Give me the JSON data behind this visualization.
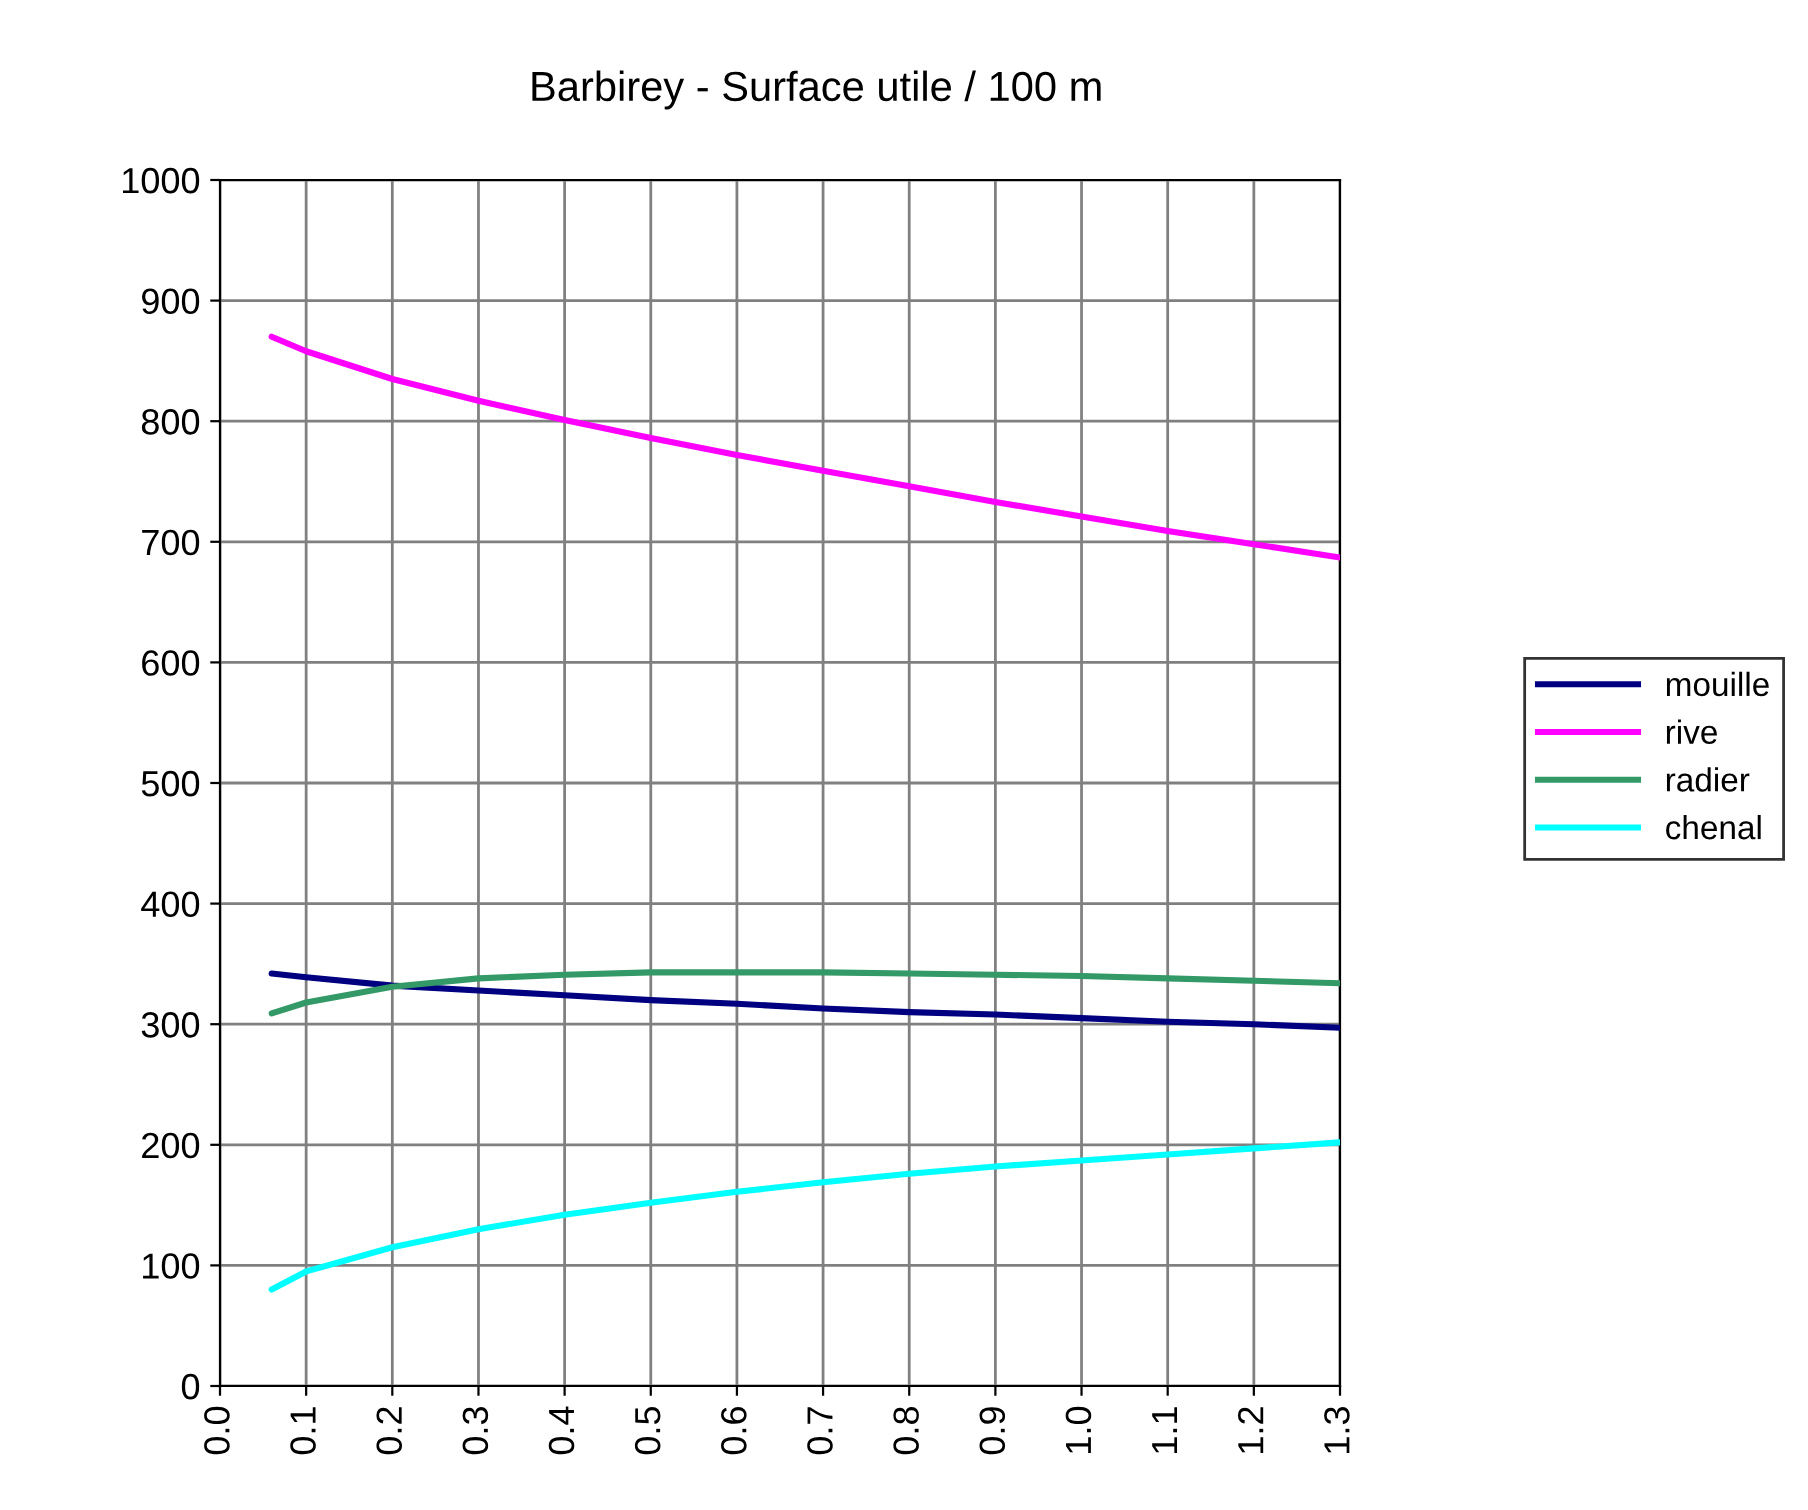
{
  "chart_data": {
    "type": "line",
    "title": "Barbirey - Surface utile / 100 m",
    "x": [
      0.06,
      0.1,
      0.2,
      0.3,
      0.4,
      0.5,
      0.6,
      0.7,
      0.8,
      0.9,
      1.0,
      1.1,
      1.2,
      1.3
    ],
    "series": [
      {
        "name": "mouille",
        "color": "#000080",
        "values": [
          342,
          339,
          332,
          328,
          324,
          320,
          317,
          313,
          310,
          308,
          305,
          302,
          300,
          297
        ]
      },
      {
        "name": "rive",
        "color": "#ff00ff",
        "values": [
          870,
          858,
          835,
          817,
          801,
          786,
          772,
          759,
          746,
          733,
          721,
          709,
          698,
          687
        ]
      },
      {
        "name": "radier",
        "color": "#339966",
        "values": [
          309,
          318,
          331,
          338,
          341,
          343,
          343,
          343,
          342,
          341,
          340,
          338,
          336,
          334
        ]
      },
      {
        "name": "chenal",
        "color": "#00ffff",
        "values": [
          80,
          95,
          115,
          130,
          142,
          152,
          161,
          169,
          176,
          182,
          187,
          192,
          197,
          202
        ]
      }
    ],
    "xlim": [
      0,
      1.3
    ],
    "xticks": [
      {
        "value": 0,
        "label": "0.0"
      },
      0.1,
      0.2,
      0.3,
      0.4,
      0.5,
      0.6,
      0.7,
      0.8,
      0.9,
      {
        "value": 1,
        "label": "1.0"
      },
      1.1,
      1.2,
      1.3
    ],
    "ylim": [
      0,
      1000
    ],
    "yticks": [
      0,
      100,
      200,
      300,
      400,
      500,
      600,
      700,
      800,
      900,
      1000
    ],
    "grid": true,
    "legend": "right",
    "marker": "none",
    "line_style": "solid"
  }
}
